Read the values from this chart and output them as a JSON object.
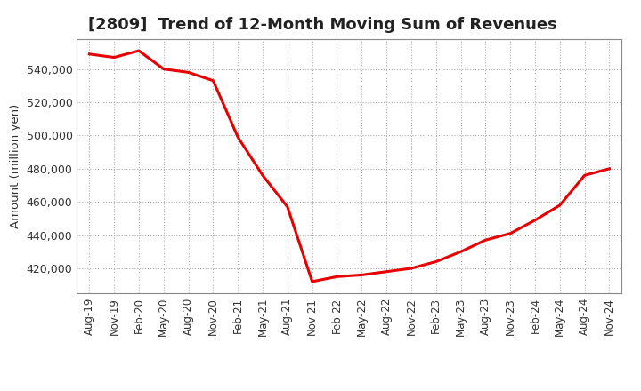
{
  "title": "[2809]  Trend of 12-Month Moving Sum of Revenues",
  "ylabel": "Amount (million yen)",
  "line_color": "#e80000",
  "background_color": "#ffffff",
  "grid_color": "#aaaaaa",
  "x_labels": [
    "Aug-19",
    "Nov-19",
    "Feb-20",
    "May-20",
    "Aug-20",
    "Nov-20",
    "Feb-21",
    "May-21",
    "Aug-21",
    "Nov-21",
    "Feb-22",
    "May-22",
    "Aug-22",
    "Nov-22",
    "Feb-23",
    "May-23",
    "Aug-23",
    "Nov-23",
    "Feb-24",
    "May-24",
    "Aug-24",
    "Nov-24"
  ],
  "x_values": [
    0,
    3,
    6,
    9,
    12,
    15,
    18,
    21,
    24,
    27,
    30,
    33,
    36,
    39,
    42,
    45,
    48,
    51,
    54,
    57,
    60,
    63
  ],
  "y_values": [
    549000,
    547000,
    551000,
    540000,
    538000,
    533000,
    499000,
    476000,
    457000,
    412000,
    415000,
    416000,
    418000,
    420000,
    424000,
    430000,
    437000,
    441000,
    449000,
    458000,
    476000,
    480000
  ],
  "ylim": [
    405000,
    558000
  ],
  "yticks": [
    420000,
    440000,
    460000,
    480000,
    500000,
    520000,
    540000
  ],
  "title_fontsize": 13,
  "tick_fontsize": 9
}
